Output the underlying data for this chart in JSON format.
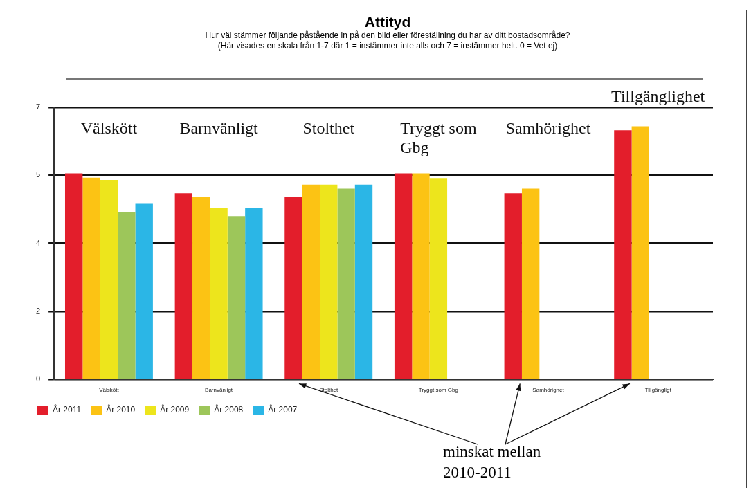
{
  "chart_data": {
    "type": "bar",
    "title": "Attityd",
    "subtitle": "Hur väl stämmer följande påstående in på den bild eller föreställning du har av ditt bostadsområde?",
    "annotations": [
      "(Här visades en skala från 1-7 där 1 = instämmer inte alls och 7 = instämmer helt. 0 = Vet ej)",
      "Välskött",
      "Barnvänligt",
      "Stolthet",
      "Tryggt som Gbg",
      "Samhörighet",
      "Tillgänglighet",
      "minskat mellan 2010-2011"
    ],
    "categories": [
      "Välskött",
      "Barnvänligt",
      "Stolthet",
      "Tryggt som Gbg",
      "Samhörighet",
      "Tillgängligt"
    ],
    "series": [
      {
        "name": "År 2011",
        "color": "#e31e2b",
        "values": [
          5.3,
          4.79,
          4.7,
          5.3,
          4.79,
          6.41
        ]
      },
      {
        "name": "År 2010",
        "color": "#fcc314",
        "values": [
          5.19,
          4.7,
          5.01,
          5.3,
          4.91,
          6.51
        ]
      },
      {
        "name": "År 2009",
        "color": "#ede51c",
        "values": [
          5.13,
          4.41,
          5.01,
          5.18,
          null,
          null
        ]
      },
      {
        "name": "År 2008",
        "color": "#9dc65a",
        "values": [
          4.3,
          4.2,
          4.91,
          null,
          null,
          null
        ]
      },
      {
        "name": "År 2007",
        "color": "#2bb6e6",
        "values": [
          4.52,
          4.41,
          5.01,
          null,
          null,
          null
        ]
      }
    ],
    "ylim": [
      0,
      7
    ],
    "yticks": [
      0,
      {
        "value": 1.75,
        "label": "2"
      },
      {
        "value": 3.5,
        "label": "4"
      },
      {
        "value": 5.25,
        "label": "5"
      },
      7
    ],
    "grid": "y",
    "legend": "bottom"
  }
}
